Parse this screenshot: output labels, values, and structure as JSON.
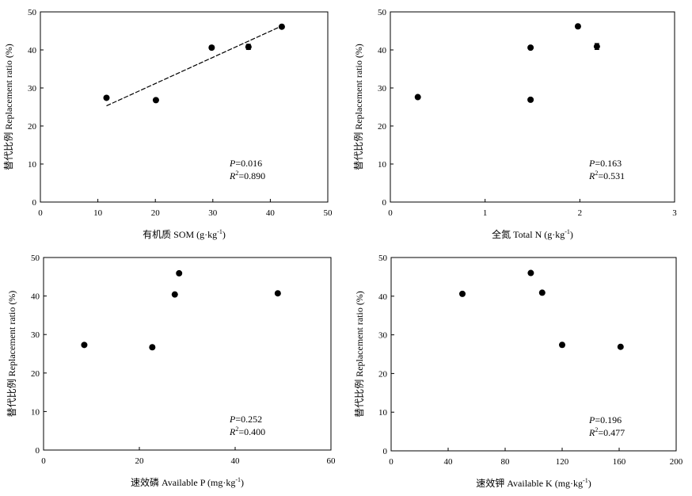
{
  "chart_data": [
    {
      "type": "scatter",
      "xlabel": "有机质 SOM",
      "xunit": "g·kg",
      "xunit_exp": "-1",
      "ylabel": "替代比例 Replacement ratio (%)",
      "xlim": [
        0,
        50
      ],
      "ylim": [
        0,
        50
      ],
      "xticks": [
        0,
        10,
        20,
        30,
        40,
        50
      ],
      "yticks": [
        0,
        10,
        20,
        30,
        40,
        50
      ],
      "points": [
        {
          "x": 11.5,
          "y": 27.4,
          "err": 0.3
        },
        {
          "x": 20.1,
          "y": 26.8,
          "err": 0.4
        },
        {
          "x": 29.8,
          "y": 40.6,
          "err": 0.5
        },
        {
          "x": 36.2,
          "y": 40.8,
          "err": 0.7
        },
        {
          "x": 42.0,
          "y": 46.1,
          "err": 0.3
        }
      ],
      "fit": {
        "x1": 11.5,
        "y1": 25.3,
        "x2": 42.0,
        "y2": 46.3
      },
      "p_label": "P",
      "p_value": "=0.016",
      "r2_label": "R",
      "r2_exp": "2",
      "r2_value": "=0.890"
    },
    {
      "type": "scatter",
      "xlabel": "全氮 Total N",
      "xunit": "g·kg",
      "xunit_exp": "-1",
      "ylabel": "替代比例 Replacement ratio (%)",
      "xlim": [
        0,
        3
      ],
      "ylim": [
        0,
        50
      ],
      "xticks": [
        0,
        1,
        2,
        3
      ],
      "yticks": [
        0,
        10,
        20,
        30,
        40,
        50
      ],
      "points": [
        {
          "x": 0.29,
          "y": 27.6,
          "err": 0.3
        },
        {
          "x": 1.48,
          "y": 26.9,
          "err": 0.3
        },
        {
          "x": 1.48,
          "y": 40.6,
          "err": 0.3
        },
        {
          "x": 1.98,
          "y": 46.2,
          "err": 0.3
        },
        {
          "x": 2.18,
          "y": 40.9,
          "err": 0.8
        }
      ],
      "p_label": "P",
      "p_value": "=0.163",
      "r2_label": "R",
      "r2_exp": "2",
      "r2_value": "=0.531"
    },
    {
      "type": "scatter",
      "xlabel": "速效磷 Available P",
      "xunit": "mg·kg",
      "xunit_exp": "-1",
      "ylabel": "替代比例 Replacement ratio (%)",
      "xlim": [
        0,
        60
      ],
      "ylim": [
        0,
        50
      ],
      "xticks": [
        0,
        20,
        40,
        60
      ],
      "yticks": [
        0,
        10,
        20,
        30,
        40,
        50
      ],
      "points": [
        {
          "x": 8.5,
          "y": 27.3,
          "err": 0.4
        },
        {
          "x": 22.7,
          "y": 26.7,
          "err": 0.3
        },
        {
          "x": 27.4,
          "y": 40.4,
          "err": 0.3
        },
        {
          "x": 28.3,
          "y": 45.9,
          "err": 0.3
        },
        {
          "x": 48.9,
          "y": 40.7,
          "err": 0.3
        }
      ],
      "p_label": "P",
      "p_value": "=0.252",
      "r2_label": "R",
      "r2_exp": "2",
      "r2_value": "=0.400"
    },
    {
      "type": "scatter",
      "xlabel": "速效钾 Available K",
      "xunit": "mg·kg",
      "xunit_exp": "-1",
      "ylabel": "替代比例 Replacement ratio (%)",
      "xlim": [
        0,
        200
      ],
      "ylim": [
        0,
        50
      ],
      "xticks": [
        0,
        40,
        80,
        120,
        160,
        200
      ],
      "yticks": [
        0,
        10,
        20,
        30,
        40,
        50
      ],
      "points": [
        {
          "x": 50.0,
          "y": 40.6,
          "err": 0.3
        },
        {
          "x": 98.0,
          "y": 46.0,
          "err": 0.3
        },
        {
          "x": 106.0,
          "y": 40.9,
          "err": 0.3
        },
        {
          "x": 120.0,
          "y": 27.4,
          "err": 0.5
        },
        {
          "x": 161.0,
          "y": 26.9,
          "err": 0.3
        }
      ],
      "p_label": "P",
      "p_value": "=0.196",
      "r2_label": "R",
      "r2_exp": "2",
      "r2_value": "=0.477"
    }
  ]
}
